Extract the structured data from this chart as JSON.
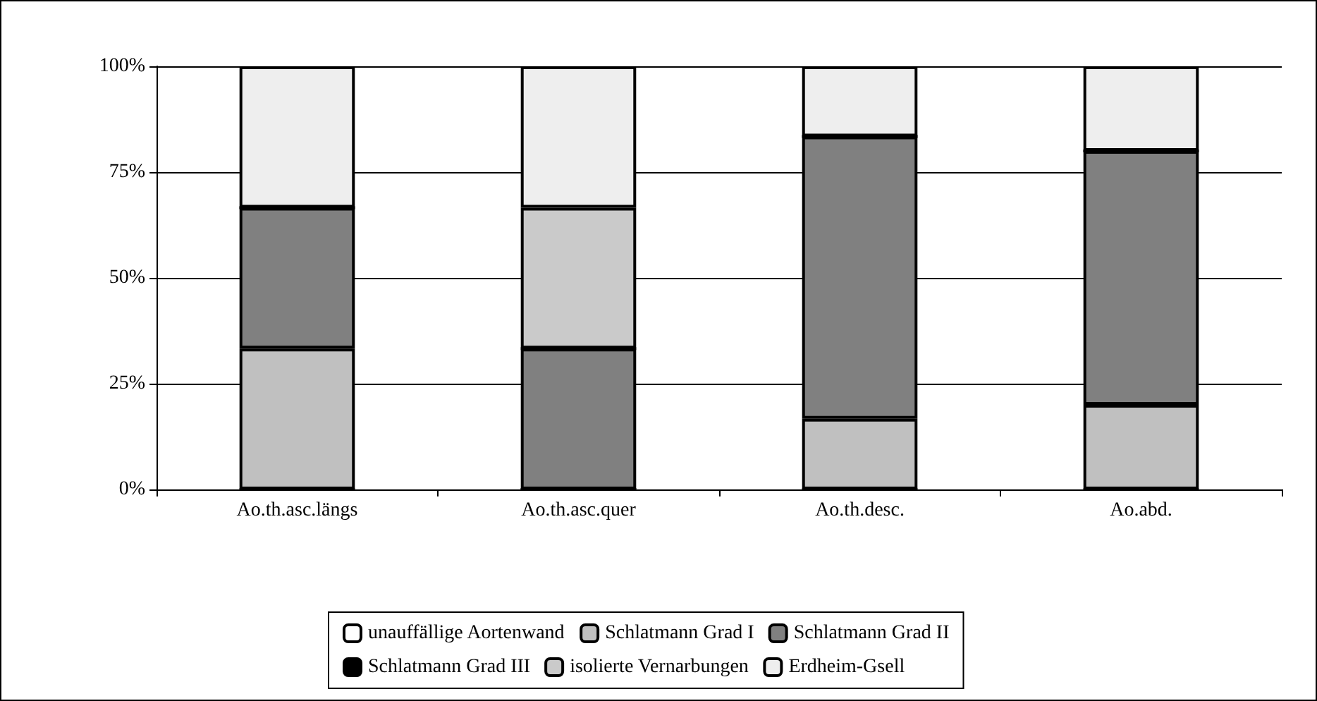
{
  "chart_data": {
    "type": "bar",
    "stacked": true,
    "categories": [
      "Ao.th.asc.längs",
      "Ao.th.asc.quer",
      "Ao.th.desc.",
      "Ao.abd."
    ],
    "series": [
      {
        "name": "unauffällige Aortenwand",
        "color": "#ffffff",
        "values": [
          0,
          0,
          0,
          0
        ]
      },
      {
        "name": "Schlatmann Grad I",
        "color": "#c0c0c0",
        "values": [
          33.3,
          0,
          16.7,
          20
        ]
      },
      {
        "name": "Schlatmann Grad II",
        "color": "#808080",
        "values": [
          33.3,
          33.3,
          66.7,
          60
        ]
      },
      {
        "name": "Schlatmann Grad III",
        "color": "#000000",
        "values": [
          0,
          0,
          0,
          0
        ]
      },
      {
        "name": "isolierte Vernarbungen",
        "color": "#cacaca",
        "values": [
          0,
          33.3,
          0,
          0
        ]
      },
      {
        "name": "Erdheim-Gsell",
        "color": "#eeeeee",
        "values": [
          33.4,
          33.4,
          16.6,
          20
        ]
      }
    ],
    "ylim": [
      0,
      100
    ],
    "yticks": [
      {
        "value": 0,
        "label": "0%"
      },
      {
        "value": 25,
        "label": "25%"
      },
      {
        "value": 50,
        "label": "50%"
      },
      {
        "value": 75,
        "label": "75%"
      },
      {
        "value": 100,
        "label": "100%"
      }
    ],
    "grid": "y",
    "legend": "bottom"
  }
}
